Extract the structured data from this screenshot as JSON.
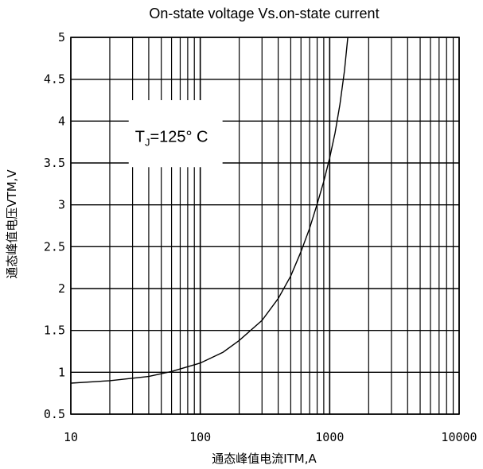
{
  "chart_data": {
    "type": "line",
    "title": "On-state voltage Vs.on-state current",
    "xlabel": "通态峰值电流ITM,A",
    "ylabel": "通态峰值电压VTM,V",
    "x_scale": "log",
    "xlim": [
      10,
      10000
    ],
    "ylim": [
      0.5,
      5
    ],
    "x_ticks": [
      "10",
      "100",
      "1000",
      "10000"
    ],
    "y_ticks": [
      "0.5",
      "1",
      "1.5",
      "2",
      "2.5",
      "3",
      "3.5",
      "4",
      "4.5",
      "5"
    ],
    "grid": true,
    "annotation": {
      "text_main": "T",
      "text_sub": "J",
      "text_rest": "=125° C"
    },
    "series": [
      {
        "x": [
          10,
          20,
          40,
          60,
          100,
          150,
          200,
          300,
          400,
          500,
          600,
          700,
          800,
          900,
          1000,
          1100,
          1200,
          1300,
          1380
        ],
        "y": [
          0.87,
          0.9,
          0.95,
          1.01,
          1.11,
          1.24,
          1.38,
          1.62,
          1.88,
          2.15,
          2.44,
          2.72,
          3.01,
          3.28,
          3.56,
          3.86,
          4.2,
          4.6,
          5.0
        ]
      }
    ]
  }
}
